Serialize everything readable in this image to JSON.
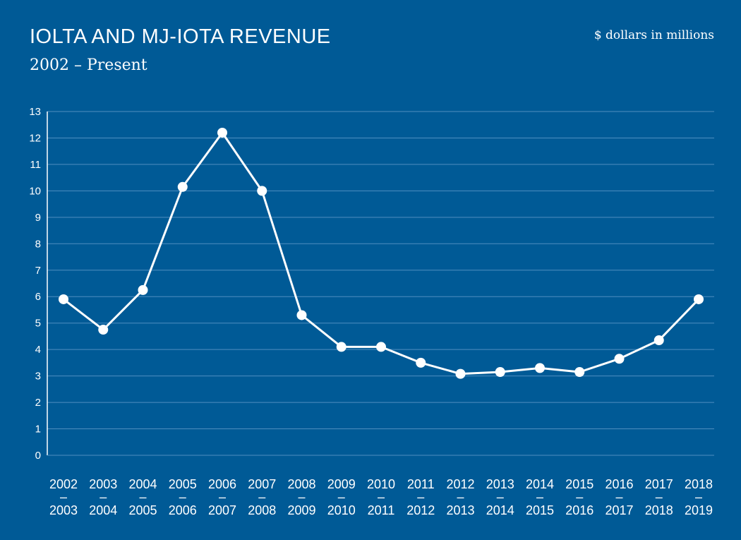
{
  "header": {
    "title": "IOLTA AND MJ-IOTA REVENUE",
    "subtitle": "2002 – Present",
    "units": "$ dollars in millions"
  },
  "colors": {
    "background": "#005a96",
    "line": "#ffffff",
    "grid": "#4f8ec0"
  },
  "chart_data": {
    "type": "line",
    "title": "IOLTA AND MJ-IOTA REVENUE",
    "subtitle": "2002 – Present",
    "xlabel": "",
    "ylabel": "",
    "ylim": [
      0,
      13
    ],
    "yticks": [
      0,
      1,
      2,
      3,
      4,
      5,
      6,
      7,
      8,
      9,
      10,
      11,
      12,
      13
    ],
    "grid": true,
    "categories": [
      {
        "start": "2002",
        "sep": "–",
        "end": "2003"
      },
      {
        "start": "2003",
        "sep": "–",
        "end": "2004"
      },
      {
        "start": "2004",
        "sep": "–",
        "end": "2005"
      },
      {
        "start": "2005",
        "sep": "–",
        "end": "2006"
      },
      {
        "start": "2006",
        "sep": "–",
        "end": "2007"
      },
      {
        "start": "2007",
        "sep": "–",
        "end": "2008"
      },
      {
        "start": "2008",
        "sep": "–",
        "end": "2009"
      },
      {
        "start": "2009",
        "sep": "–",
        "end": "2010"
      },
      {
        "start": "2010",
        "sep": "–",
        "end": "2011"
      },
      {
        "start": "2011",
        "sep": "–",
        "end": "2012"
      },
      {
        "start": "2012",
        "sep": "–",
        "end": "2013"
      },
      {
        "start": "2013",
        "sep": "–",
        "end": "2014"
      },
      {
        "start": "2014",
        "sep": "–",
        "end": "2015"
      },
      {
        "start": "2015",
        "sep": "–",
        "end": "2016"
      },
      {
        "start": "2016",
        "sep": "–",
        "end": "2017"
      },
      {
        "start": "2017",
        "sep": "–",
        "end": "2018"
      },
      {
        "start": "2018",
        "sep": "–",
        "end": "2019"
      }
    ],
    "values": [
      5.9,
      4.75,
      6.25,
      10.15,
      12.2,
      10.0,
      5.3,
      4.1,
      4.1,
      3.5,
      3.08,
      3.15,
      3.3,
      3.15,
      3.65,
      4.35,
      5.9
    ]
  }
}
